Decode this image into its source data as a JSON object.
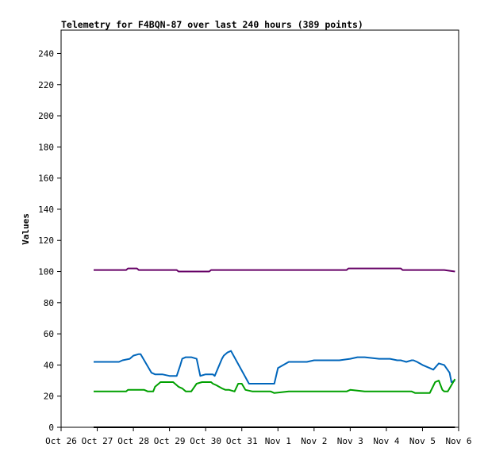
{
  "chart_data": {
    "type": "line",
    "title": "Telemetry for F4BQN-87 over last 240 hours (389 points)",
    "xlabel": "",
    "ylabel": "Values",
    "ylim": [
      0,
      255
    ],
    "y_ticks": [
      0,
      20,
      40,
      60,
      80,
      100,
      120,
      140,
      160,
      180,
      200,
      220,
      240
    ],
    "x_range_days": [
      "Oct 26",
      "Nov 6"
    ],
    "x_ticks": [
      "Oct 26",
      "Oct 27",
      "Oct 28",
      "Oct 29",
      "Oct 30",
      "Oct 31",
      "Nov 1",
      "Nov 2",
      "Nov 3",
      "Nov 4",
      "Nov 5",
      "Nov 6"
    ],
    "x_tick_offsets": [
      0,
      1,
      2,
      3,
      4,
      5,
      6,
      7,
      8,
      9,
      10,
      11
    ],
    "grid": false,
    "series": [
      {
        "color": "#660066",
        "x": [
          0.9,
          1.8,
          1.85,
          2.1,
          2.15,
          3.2,
          3.25,
          4.1,
          4.15,
          5.0,
          7.9,
          7.95,
          9.4,
          9.45,
          10.6,
          10.9
        ],
        "y": [
          101,
          101,
          102,
          102,
          101,
          101,
          100,
          100,
          101,
          101,
          101,
          102,
          102,
          101,
          101,
          100
        ]
      },
      {
        "color": "#0066bb",
        "x": [
          0.9,
          1.6,
          1.7,
          1.9,
          2.0,
          2.15,
          2.2,
          2.5,
          2.6,
          2.75,
          2.8,
          3.0,
          3.2,
          3.3,
          3.35,
          3.45,
          3.6,
          3.75,
          3.85,
          4.0,
          4.1,
          4.2,
          4.25,
          4.45,
          4.5,
          4.6,
          4.7,
          5.2,
          5.6,
          5.9,
          6.0,
          6.3,
          6.8,
          7.0,
          7.7,
          8.0,
          8.2,
          8.4,
          8.8,
          9.1,
          9.3,
          9.4,
          9.55,
          9.7,
          9.75,
          9.85,
          10.0,
          10.2,
          10.3,
          10.45,
          10.6,
          10.75,
          10.8,
          10.9
        ],
        "y": [
          42,
          42,
          43,
          44,
          46,
          47,
          47,
          35,
          34,
          34,
          34,
          33,
          33,
          40,
          44,
          45,
          45,
          44,
          33,
          34,
          34,
          34,
          33,
          44,
          46,
          48,
          49,
          28,
          28,
          28,
          38,
          42,
          42,
          43,
          43,
          44,
          45,
          45,
          44,
          44,
          43,
          43,
          42,
          43,
          43,
          42,
          40,
          38,
          37,
          41,
          40,
          35,
          29,
          30
        ]
      },
      {
        "color": "#00a000",
        "x": [
          0.9,
          1.8,
          1.85,
          2.3,
          2.4,
          2.55,
          2.6,
          2.7,
          2.75,
          3.0,
          3.1,
          3.25,
          3.35,
          3.45,
          3.6,
          3.75,
          3.9,
          4.0,
          4.15,
          4.2,
          4.3,
          4.45,
          4.55,
          4.65,
          4.8,
          4.9,
          5.0,
          5.1,
          5.3,
          5.55,
          5.8,
          5.9,
          6.3,
          7.0,
          7.9,
          8.0,
          8.4,
          9.0,
          9.3,
          9.6,
          9.7,
          9.8,
          9.85,
          10.0,
          10.2,
          10.35,
          10.45,
          10.55,
          10.6,
          10.65,
          10.7,
          10.9
        ],
        "y": [
          23,
          23,
          24,
          24,
          23,
          23,
          26,
          28,
          29,
          29,
          29,
          26,
          25,
          23,
          23,
          28,
          29,
          29,
          29,
          28,
          27,
          25,
          24,
          24,
          23,
          28,
          28,
          24,
          23,
          23,
          23,
          22,
          23,
          23,
          23,
          24,
          23,
          23,
          23,
          23,
          23,
          22,
          22,
          22,
          22,
          29,
          30,
          24,
          23,
          23,
          23,
          31
        ]
      },
      {
        "color": "#000000",
        "x": [
          0.9,
          10.9
        ],
        "y": [
          0,
          0
        ]
      }
    ]
  }
}
